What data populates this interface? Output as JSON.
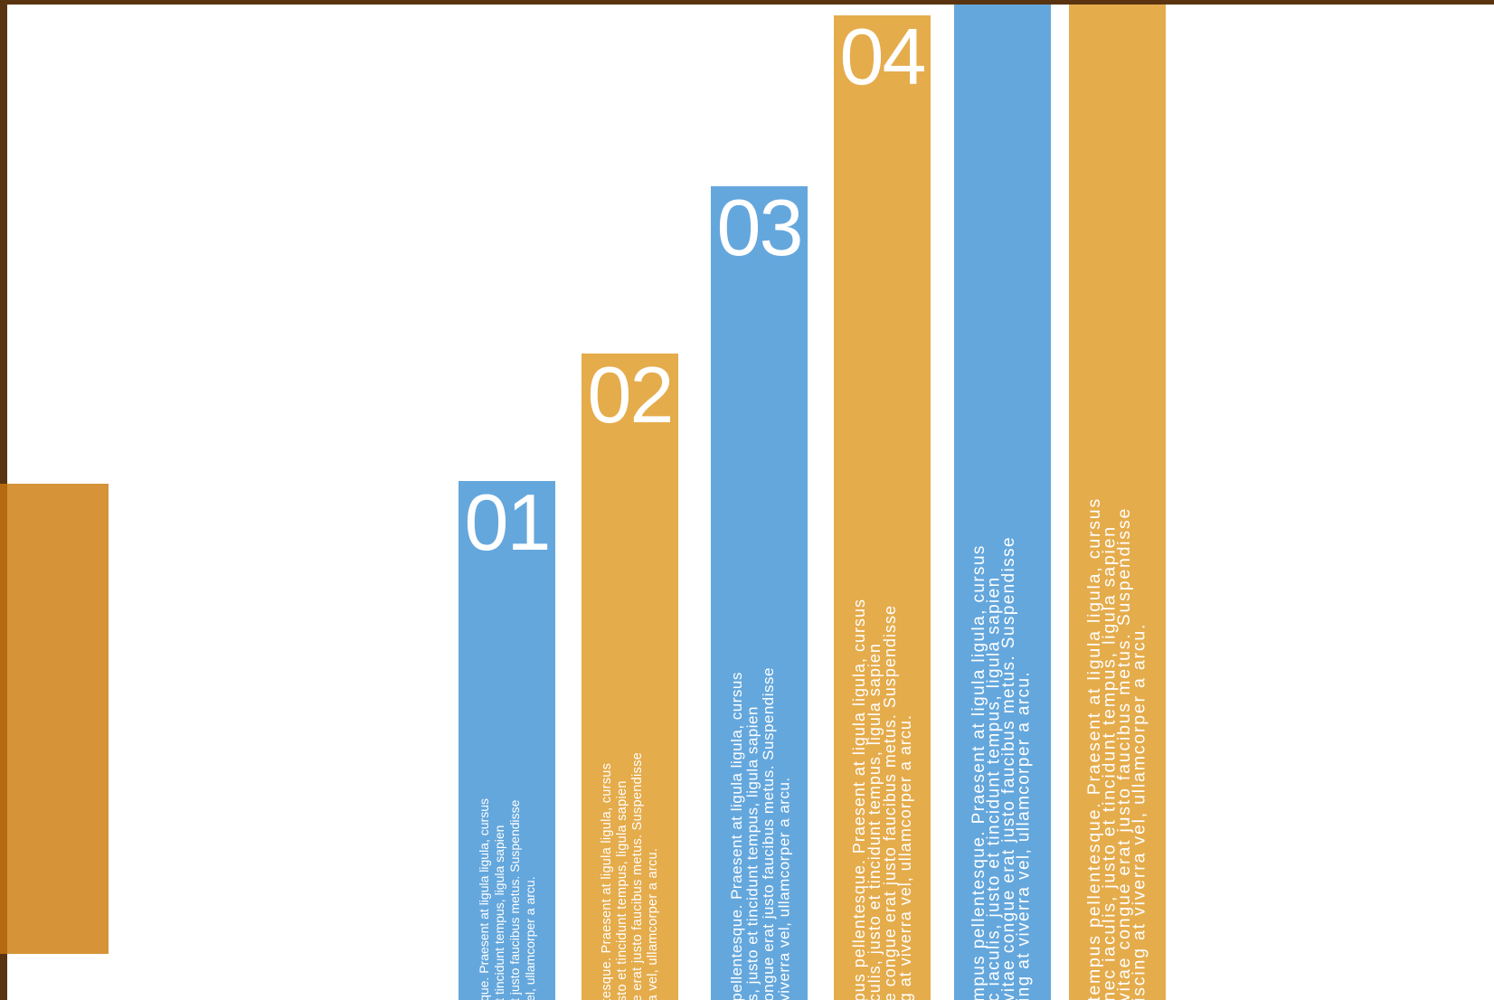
{
  "bars": [
    {
      "number": "01",
      "lines": [
        "que. Praesent at ligula ligula, cursus",
        "t tincidunt tempus, ligula sapien",
        "t justo faucibus metus. Suspendisse",
        "el, ullamcorper a arcu."
      ]
    },
    {
      "number": "02",
      "lines": [
        "tesque. Praesent at ligula ligula, cursus",
        "sto et tincidunt tempus, ligula sapien",
        "e erat justo faucibus metus. Suspendisse",
        "a vel, ullamcorper a arcu."
      ]
    },
    {
      "number": "03",
      "lines": [
        "pellentesque. Praesent at ligula ligula, cursus",
        "s, justo et tincidunt tempus, ligula sapien",
        "ongue erat justo faucibus metus. Suspendisse",
        "viverra vel, ullamcorper a arcu."
      ]
    },
    {
      "number": "04",
      "lines": [
        "pus pellentesque. Praesent at ligula ligula, cursus",
        "culis, justo et tincidunt tempus, ligula sapien",
        "e congue erat justo faucibus metus. Suspendisse",
        "g at viverra vel, ullamcorper a arcu."
      ]
    },
    {
      "lines": [
        "mpus pellentesque. Praesent at ligula ligula, cursus",
        "c iaculis, justo et tincidunt tempus, ligula sapien",
        "vitae congue erat justo faucibus metus. Suspendisse",
        "ing at viverra vel, ullamcorper a arcu."
      ]
    },
    {
      "lines": [
        "tempus pellentesque. Praesent at ligula ligula, cursus",
        "nec iaculis, justo et tincidunt tempus, ligula sapien",
        "vitae congue erat justo faucibus metus. Suspendisse",
        "iscing at viverra vel, ullamcorper a arcu."
      ]
    }
  ]
}
